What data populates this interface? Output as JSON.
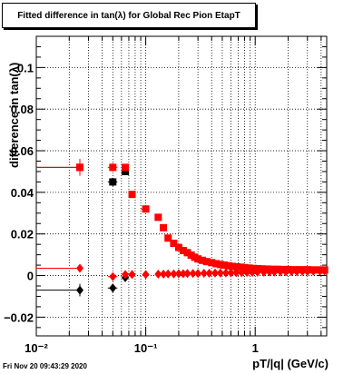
{
  "title": "Fitted difference in tan(λ) for Global Rec Pion EtapT",
  "timestamp": "Fri Nov 20 09:43:29 2020",
  "chart_data": {
    "type": "scatter",
    "xlabel": "pT/|q| (GeV/c)",
    "ylabel": "difference in tan(λ)",
    "x_scale": "log",
    "xlim": [
      0.01,
      4.5
    ],
    "ylim": [
      -0.029,
      0.115
    ],
    "grid": true,
    "y_ticks": [
      {
        "value": -0.02,
        "label": "−0.02"
      },
      {
        "value": 0,
        "label": "0"
      },
      {
        "value": 0.02,
        "label": "0.02"
      },
      {
        "value": 0.04,
        "label": "0.04"
      },
      {
        "value": 0.06,
        "label": "0.06"
      },
      {
        "value": 0.08,
        "label": "0.08"
      },
      {
        "value": 0.1,
        "label": "0.1"
      }
    ],
    "x_ticks": [
      {
        "value": 0.01,
        "label": "10⁻²"
      },
      {
        "value": 0.1,
        "label": "10⁻¹"
      },
      {
        "value": 1,
        "label": "1"
      }
    ],
    "series": [
      {
        "marker": "square",
        "color": "#000000",
        "points": [
          {
            "x": 0.025,
            "y": 0.052,
            "xerr": [
              0.015,
              0.0
            ],
            "yerr": 0.004
          },
          {
            "x": 0.05,
            "y": 0.045,
            "xerr": [
              0.005,
              0.005
            ],
            "yerr": 0.002
          },
          {
            "x": 0.065,
            "y": 0.05,
            "xerr": [
              0.005,
              0.005
            ],
            "yerr": 0.001
          }
        ]
      },
      {
        "marker": "square",
        "color": "#ff0000",
        "points": [
          {
            "x": 0.025,
            "y": 0.052,
            "xerr": [
              0.015,
              0.0
            ],
            "yerr": 0.004
          },
          {
            "x": 0.05,
            "y": 0.052,
            "xerr": [
              0.005,
              0.005
            ],
            "yerr": 0.002
          },
          {
            "x": 0.065,
            "y": 0.052,
            "xerr": [
              0.005,
              0.005
            ],
            "yerr": 0.001
          },
          {
            "x": 0.075,
            "y": 0.039
          },
          {
            "x": 0.1,
            "y": 0.032,
            "xerr": [
              0.01,
              0.005
            ]
          },
          {
            "x": 0.13,
            "y": 0.028
          },
          {
            "x": 0.145,
            "y": 0.023
          },
          {
            "x": 0.16,
            "y": 0.018
          },
          {
            "x": 0.18,
            "y": 0.0155
          },
          {
            "x": 0.2,
            "y": 0.0135
          },
          {
            "x": 0.22,
            "y": 0.012
          },
          {
            "x": 0.24,
            "y": 0.011
          },
          {
            "x": 0.26,
            "y": 0.0098
          },
          {
            "x": 0.28,
            "y": 0.0088
          },
          {
            "x": 0.3,
            "y": 0.008
          },
          {
            "x": 0.33,
            "y": 0.0073
          },
          {
            "x": 0.36,
            "y": 0.0067
          },
          {
            "x": 0.4,
            "y": 0.0062
          },
          {
            "x": 0.44,
            "y": 0.0057
          },
          {
            "x": 0.48,
            "y": 0.0053
          },
          {
            "x": 0.52,
            "y": 0.005
          },
          {
            "x": 0.57,
            "y": 0.0047
          },
          {
            "x": 0.62,
            "y": 0.0044
          },
          {
            "x": 0.68,
            "y": 0.0042
          },
          {
            "x": 0.74,
            "y": 0.004
          },
          {
            "x": 0.8,
            "y": 0.0038
          },
          {
            "x": 0.88,
            "y": 0.0036
          },
          {
            "x": 0.96,
            "y": 0.0034
          },
          {
            "x": 1.05,
            "y": 0.0033
          },
          {
            "x": 1.15,
            "y": 0.0032
          },
          {
            "x": 1.3,
            "y": 0.0031
          },
          {
            "x": 1.45,
            "y": 0.003
          },
          {
            "x": 1.6,
            "y": 0.003
          },
          {
            "x": 1.8,
            "y": 0.0029
          },
          {
            "x": 2.0,
            "y": 0.0029
          },
          {
            "x": 2.3,
            "y": 0.0028
          },
          {
            "x": 2.6,
            "y": 0.0028
          },
          {
            "x": 3.0,
            "y": 0.0028
          },
          {
            "x": 3.4,
            "y": 0.0027
          },
          {
            "x": 3.9,
            "y": 0.0027
          },
          {
            "x": 4.3,
            "y": 0.0027
          }
        ]
      },
      {
        "marker": "diamond",
        "color": "#000000",
        "points": [
          {
            "x": 0.025,
            "y": -0.007,
            "xerr": [
              0.015,
              0.0
            ],
            "yerr": 0.003
          },
          {
            "x": 0.05,
            "y": -0.006,
            "xerr": [
              0.005,
              0.005
            ],
            "yerr": 0.002
          },
          {
            "x": 0.065,
            "y": -0.001,
            "xerr": [
              0.005,
              0.005
            ],
            "yerr": 0.001
          }
        ]
      },
      {
        "marker": "diamond",
        "color": "#ff0000",
        "points": [
          {
            "x": 0.025,
            "y": 0.0035,
            "xerr": [
              0.015,
              0.0
            ],
            "yerr": 0.002
          },
          {
            "x": 0.05,
            "y": -0.0005,
            "xerr": [
              0.005,
              0.005
            ]
          },
          {
            "x": 0.065,
            "y": 0.0005
          },
          {
            "x": 0.075,
            "y": 0.0005
          },
          {
            "x": 0.1,
            "y": 0.0005
          },
          {
            "x": 0.13,
            "y": 0.0007
          },
          {
            "x": 0.145,
            "y": 0.0007
          },
          {
            "x": 0.16,
            "y": 0.0008
          },
          {
            "x": 0.18,
            "y": 0.0008
          },
          {
            "x": 0.2,
            "y": 0.0009
          },
          {
            "x": 0.22,
            "y": 0.0009
          },
          {
            "x": 0.24,
            "y": 0.001
          },
          {
            "x": 0.27,
            "y": 0.001
          },
          {
            "x": 0.3,
            "y": 0.001
          },
          {
            "x": 0.34,
            "y": 0.0011
          },
          {
            "x": 0.38,
            "y": 0.0011
          },
          {
            "x": 0.43,
            "y": 0.0012
          },
          {
            "x": 0.48,
            "y": 0.0012
          },
          {
            "x": 0.54,
            "y": 0.0013
          },
          {
            "x": 0.6,
            "y": 0.0013
          },
          {
            "x": 0.67,
            "y": 0.0014
          },
          {
            "x": 0.75,
            "y": 0.0014
          },
          {
            "x": 0.84,
            "y": 0.0015
          },
          {
            "x": 0.94,
            "y": 0.0015
          },
          {
            "x": 1.05,
            "y": 0.0016
          },
          {
            "x": 1.2,
            "y": 0.0016
          },
          {
            "x": 1.35,
            "y": 0.0017
          },
          {
            "x": 1.5,
            "y": 0.0017
          },
          {
            "x": 1.7,
            "y": 0.0018
          },
          {
            "x": 1.9,
            "y": 0.0018
          },
          {
            "x": 2.15,
            "y": 0.0019
          },
          {
            "x": 2.4,
            "y": 0.0019
          },
          {
            "x": 2.7,
            "y": 0.002
          },
          {
            "x": 3.0,
            "y": 0.002
          },
          {
            "x": 3.4,
            "y": 0.0021
          },
          {
            "x": 3.9,
            "y": 0.0021
          },
          {
            "x": 4.3,
            "y": 0.0022
          }
        ]
      }
    ]
  }
}
